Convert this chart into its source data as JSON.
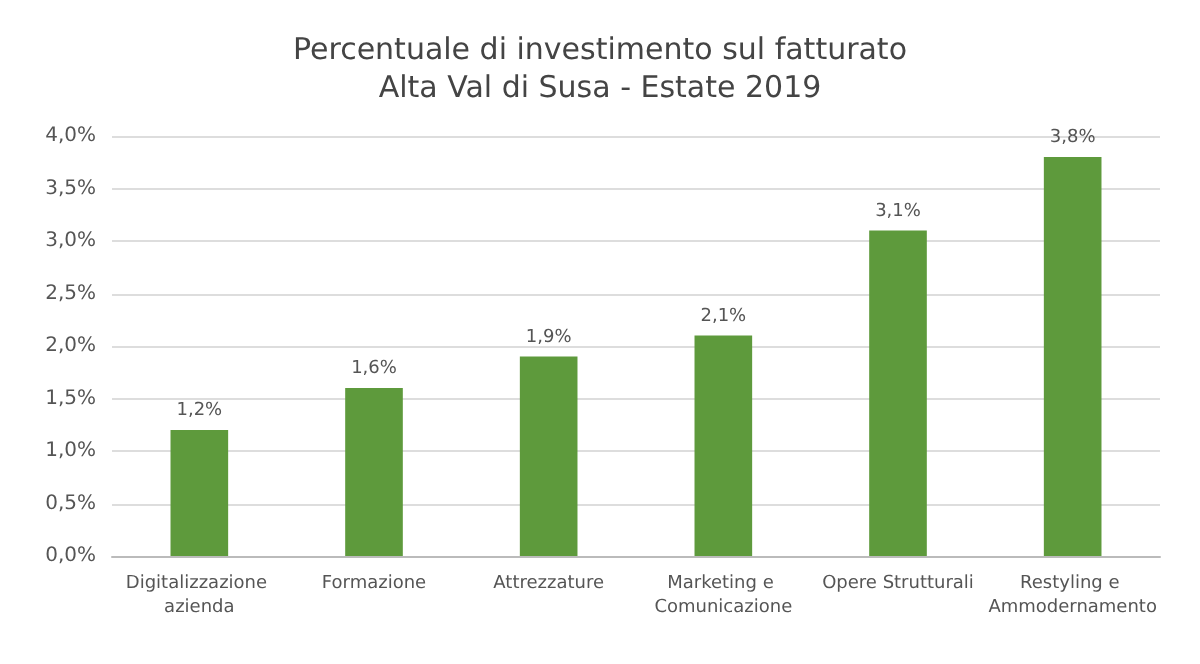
{
  "chart_data": {
    "type": "bar",
    "title": "Percentuale di investimento sul fatturato",
    "subtitle": "Alta Val di Susa - Estate 2019",
    "categories": [
      "Digitalizzazione azienda",
      "Formazione",
      "Attrezzature",
      "Marketing e Comunicazione",
      "Opere Strutturali",
      "Restyling e Ammodernamento"
    ],
    "values": [
      1.2,
      1.6,
      1.9,
      2.1,
      3.1,
      3.8
    ],
    "value_labels": [
      "1,2%",
      "1,6%",
      "1,9%",
      "2,1%",
      "3,1%",
      "3,8%"
    ],
    "color": "#5e9a3c",
    "ylim": [
      0,
      4
    ],
    "yticks": [
      {
        "value": 0,
        "label": "0,0%"
      },
      {
        "value": 0.5,
        "label": "0,5%"
      },
      {
        "value": 1,
        "label": "1,0%"
      },
      {
        "value": 1.5,
        "label": "1,5%"
      },
      {
        "value": 2,
        "label": "2,0%"
      },
      {
        "value": 2.5,
        "label": "2,5%"
      },
      {
        "value": 3,
        "label": "3,0%"
      },
      {
        "value": 3.5,
        "label": "3,5%"
      },
      {
        "value": 4,
        "label": "4,0%"
      }
    ],
    "grid": true
  }
}
